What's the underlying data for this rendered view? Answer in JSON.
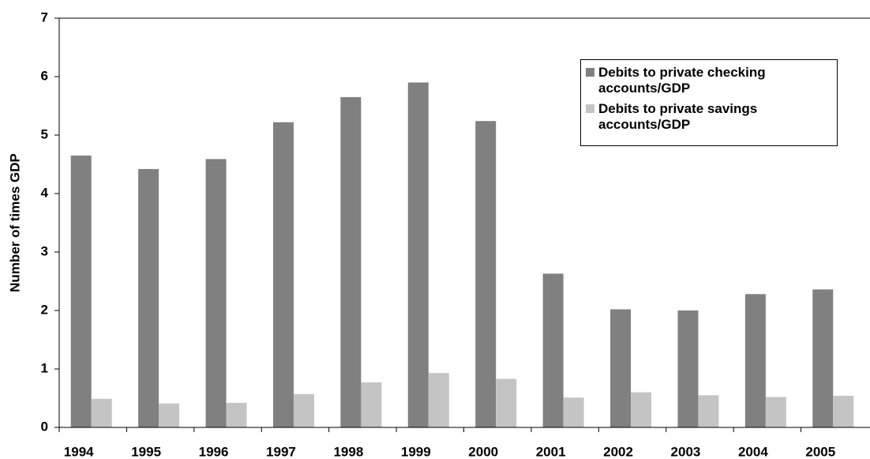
{
  "chart_data": {
    "type": "bar",
    "y_label": "Number of times GDP",
    "categories": [
      "1994",
      "1995",
      "1996",
      "1997",
      "1998",
      "1999",
      "2000",
      "2001",
      "2002",
      "2003",
      "2004",
      "2005"
    ],
    "series": [
      {
        "name": "Debits to private checking accounts/GDP",
        "color": "#808080",
        "values": [
          4.65,
          4.42,
          4.59,
          5.22,
          5.65,
          5.9,
          5.24,
          2.63,
          2.02,
          2.0,
          2.28,
          2.36
        ]
      },
      {
        "name": "Debits to private savings accounts/GDP",
        "color": "#c4c4c4",
        "values": [
          0.49,
          0.41,
          0.42,
          0.57,
          0.77,
          0.93,
          0.83,
          0.51,
          0.6,
          0.55,
          0.52,
          0.54
        ]
      }
    ],
    "ylim": [
      0,
      7
    ],
    "yticks": [
      0,
      1,
      2,
      3,
      4,
      5,
      6,
      7
    ],
    "grid": false,
    "legend": "top-right"
  }
}
